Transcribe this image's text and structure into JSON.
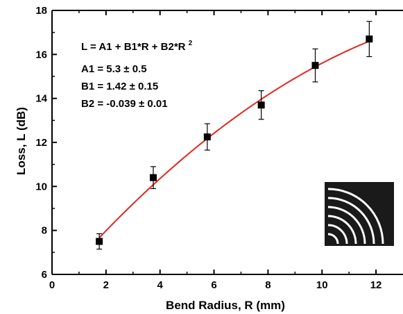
{
  "chart_data": {
    "type": "scatter",
    "xlabel": "Bend Radius, R (mm)",
    "ylabel": "Loss, L (dB)",
    "xlim": [
      0,
      13
    ],
    "ylim": [
      6,
      18
    ],
    "xticks": [
      "0",
      "2",
      "4",
      "6",
      "8",
      "10",
      "12"
    ],
    "yticks": [
      "6",
      "8",
      "10",
      "12",
      "14",
      "16",
      "18"
    ],
    "series": [
      {
        "x": [
          1.75,
          3.75,
          5.75,
          7.75,
          9.75,
          11.75
        ],
        "y": [
          7.5,
          10.4,
          12.25,
          13.7,
          15.5,
          16.7
        ],
        "yerr": [
          0.35,
          0.5,
          0.6,
          0.65,
          0.75,
          0.8
        ],
        "marker": "square",
        "color": "#000000"
      }
    ],
    "fit": {
      "A1": 5.3,
      "B1": 1.42,
      "B2": -0.039,
      "x_range": [
        1.75,
        11.75
      ],
      "color": "#e8231c"
    },
    "annotations": {
      "equation": "L = A1 + B1*R + B2*R",
      "equation_superscript": "2",
      "a1": "A1 = 5.3 ± 0.5",
      "b1": "B1 = 1.42 ± 0.15",
      "b2": "B2 = -0.039 ± 0.01"
    },
    "grid": false,
    "inset_arcs": 6
  }
}
